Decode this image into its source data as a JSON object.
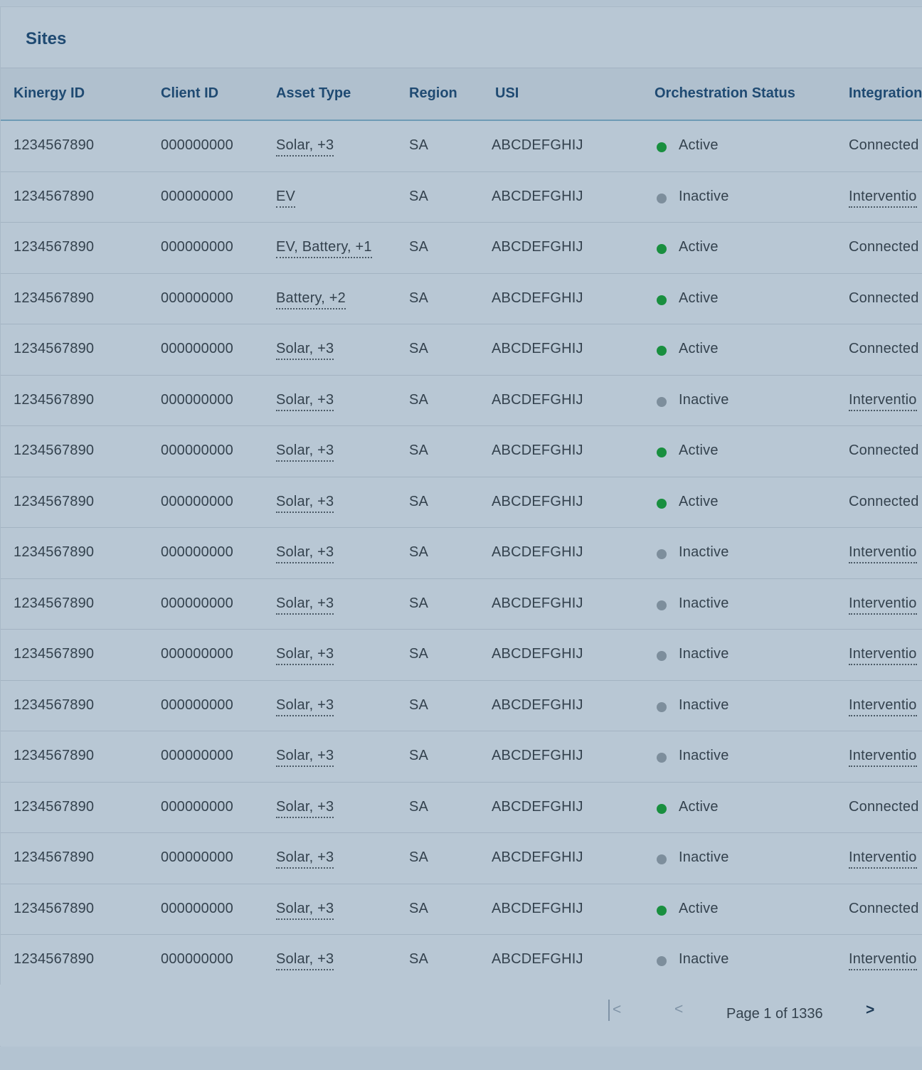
{
  "panel": {
    "title": "Sites"
  },
  "table": {
    "columns": [
      "Kinergy ID",
      "Client ID",
      "Asset Type",
      "Region",
      "USI",
      "Orchestration Status",
      "Integration"
    ],
    "rows": [
      {
        "kinergy_id": "1234567890",
        "client_id": "000000000",
        "asset_type": "Solar, +3",
        "region": "SA",
        "usi": "ABCDEFGHIJ",
        "status": "Active",
        "integration": "Connected"
      },
      {
        "kinergy_id": "1234567890",
        "client_id": "000000000",
        "asset_type": "EV",
        "region": "SA",
        "usi": "ABCDEFGHIJ",
        "status": "Inactive",
        "integration": "Interventio"
      },
      {
        "kinergy_id": "1234567890",
        "client_id": "000000000",
        "asset_type": "EV, Battery, +1",
        "region": "SA",
        "usi": "ABCDEFGHIJ",
        "status": "Active",
        "integration": "Connected"
      },
      {
        "kinergy_id": "1234567890",
        "client_id": "000000000",
        "asset_type": "Battery, +2",
        "region": "SA",
        "usi": "ABCDEFGHIJ",
        "status": "Active",
        "integration": "Connected"
      },
      {
        "kinergy_id": "1234567890",
        "client_id": "000000000",
        "asset_type": "Solar, +3",
        "region": "SA",
        "usi": "ABCDEFGHIJ",
        "status": "Active",
        "integration": "Connected"
      },
      {
        "kinergy_id": "1234567890",
        "client_id": "000000000",
        "asset_type": "Solar, +3",
        "region": "SA",
        "usi": "ABCDEFGHIJ",
        "status": "Inactive",
        "integration": "Interventio"
      },
      {
        "kinergy_id": "1234567890",
        "client_id": "000000000",
        "asset_type": "Solar, +3",
        "region": "SA",
        "usi": "ABCDEFGHIJ",
        "status": "Active",
        "integration": "Connected"
      },
      {
        "kinergy_id": "1234567890",
        "client_id": "000000000",
        "asset_type": "Solar, +3",
        "region": "SA",
        "usi": "ABCDEFGHIJ",
        "status": "Active",
        "integration": "Connected"
      },
      {
        "kinergy_id": "1234567890",
        "client_id": "000000000",
        "asset_type": "Solar, +3",
        "region": "SA",
        "usi": "ABCDEFGHIJ",
        "status": "Inactive",
        "integration": "Interventio"
      },
      {
        "kinergy_id": "1234567890",
        "client_id": "000000000",
        "asset_type": "Solar, +3",
        "region": "SA",
        "usi": "ABCDEFGHIJ",
        "status": "Inactive",
        "integration": "Interventio"
      },
      {
        "kinergy_id": "1234567890",
        "client_id": "000000000",
        "asset_type": "Solar, +3",
        "region": "SA",
        "usi": "ABCDEFGHIJ",
        "status": "Inactive",
        "integration": "Interventio"
      },
      {
        "kinergy_id": "1234567890",
        "client_id": "000000000",
        "asset_type": "Solar, +3",
        "region": "SA",
        "usi": "ABCDEFGHIJ",
        "status": "Inactive",
        "integration": "Interventio"
      },
      {
        "kinergy_id": "1234567890",
        "client_id": "000000000",
        "asset_type": "Solar, +3",
        "region": "SA",
        "usi": "ABCDEFGHIJ",
        "status": "Inactive",
        "integration": "Interventio"
      },
      {
        "kinergy_id": "1234567890",
        "client_id": "000000000",
        "asset_type": "Solar, +3",
        "region": "SA",
        "usi": "ABCDEFGHIJ",
        "status": "Active",
        "integration": "Connected"
      },
      {
        "kinergy_id": "1234567890",
        "client_id": "000000000",
        "asset_type": "Solar, +3",
        "region": "SA",
        "usi": "ABCDEFGHIJ",
        "status": "Inactive",
        "integration": "Interventio"
      },
      {
        "kinergy_id": "1234567890",
        "client_id": "000000000",
        "asset_type": "Solar, +3",
        "region": "SA",
        "usi": "ABCDEFGHIJ",
        "status": "Active",
        "integration": "Connected"
      },
      {
        "kinergy_id": "1234567890",
        "client_id": "000000000",
        "asset_type": "Solar, +3",
        "region": "SA",
        "usi": "ABCDEFGHIJ",
        "status": "Inactive",
        "integration": "Interventio"
      }
    ]
  },
  "pagination": {
    "first_icon": "first-page-icon",
    "first_glyph": "<",
    "prev_icon": "chevron-left-icon",
    "prev_glyph": "<",
    "info": "Page 1 of 1336",
    "next_icon": "chevron-right-icon",
    "next_glyph": ">"
  },
  "colors": {
    "active": "#198f3f",
    "inactive": "#7d8e9c",
    "heading": "#1f4a72",
    "text": "#34424e"
  }
}
